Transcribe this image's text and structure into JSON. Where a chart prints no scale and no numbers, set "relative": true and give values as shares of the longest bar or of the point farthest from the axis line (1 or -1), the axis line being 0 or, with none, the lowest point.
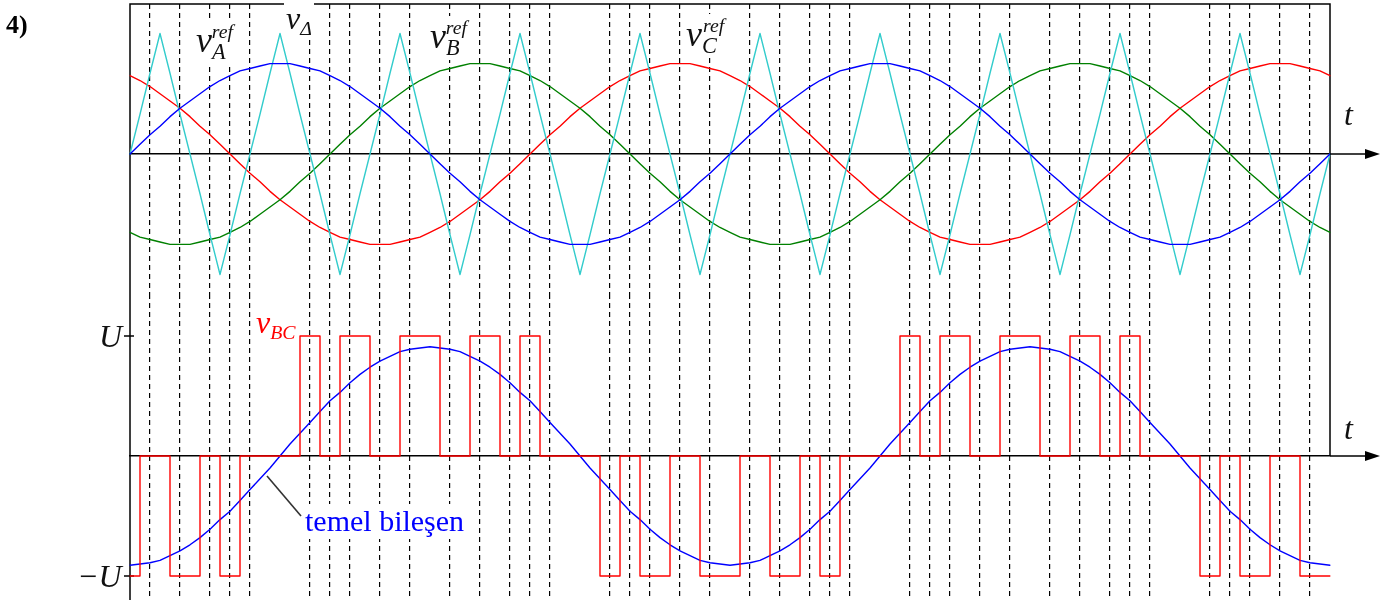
{
  "chart_data": [
    {
      "type": "line",
      "title": "4)",
      "xlabel": "t",
      "relative": true,
      "grid": "x",
      "categories": [
        null,
        null,
        null,
        null,
        null,
        null,
        null,
        null,
        null,
        null,
        null,
        null,
        null,
        null,
        null,
        null,
        null,
        null,
        null,
        null,
        null,
        null,
        null,
        null,
        null,
        null,
        null,
        null,
        null,
        null,
        null,
        null,
        null,
        null,
        null,
        null,
        null,
        null,
        null,
        null,
        null,
        null,
        null,
        null,
        null,
        null,
        null,
        null,
        null,
        null,
        null,
        null,
        null,
        null,
        null,
        null,
        null,
        null,
        null,
        null,
        null,
        null,
        null,
        null,
        null,
        null,
        null,
        null,
        null,
        null,
        null,
        null,
        null,
        null,
        null,
        null,
        null,
        null,
        null,
        null,
        null,
        null,
        null,
        null,
        null,
        null,
        null,
        null,
        null,
        null,
        null,
        null,
        null,
        null,
        null,
        null,
        null,
        null,
        null,
        null,
        null,
        null,
        null,
        null,
        null,
        null,
        null,
        null,
        null,
        null,
        null,
        null,
        null,
        null,
        null,
        null,
        null,
        null,
        null,
        null,
        null
      ],
      "series": [
        {
          "name": "v$_{A}$$^{ref}$",
          "color": "#0000ff",
          "values": [
            0,
            0.08,
            0.16,
            0.23,
            0.31,
            0.38,
            0.44,
            0.5,
            0.56,
            0.61,
            0.65,
            0.69,
            0.71,
            0.73,
            0.75,
            0.75,
            0.75,
            0.73,
            0.71,
            0.69,
            0.65,
            0.61,
            0.56,
            0.5,
            0.44,
            0.38,
            0.31,
            0.23,
            0.16,
            0.08,
            0,
            -0.08,
            -0.16,
            -0.23,
            -0.31,
            -0.38,
            -0.44,
            -0.5,
            -0.56,
            -0.61,
            -0.65,
            -0.69,
            -0.71,
            -0.73,
            -0.75,
            -0.75,
            -0.75,
            -0.73,
            -0.71,
            -0.69,
            -0.65,
            -0.61,
            -0.56,
            -0.5,
            -0.44,
            -0.38,
            -0.31,
            -0.23,
            -0.16,
            -0.08,
            0,
            0.08,
            0.16,
            0.23,
            0.31,
            0.38,
            0.44,
            0.5,
            0.56,
            0.61,
            0.65,
            0.69,
            0.71,
            0.73,
            0.75,
            0.75,
            0.75,
            0.73,
            0.71,
            0.69,
            0.65,
            0.61,
            0.56,
            0.5,
            0.44,
            0.38,
            0.31,
            0.23,
            0.16,
            0.08,
            0,
            -0.08,
            -0.16,
            -0.23,
            -0.31,
            -0.38,
            -0.44,
            -0.5,
            -0.56,
            -0.61,
            -0.65,
            -0.69,
            -0.71,
            -0.73,
            -0.75,
            -0.75,
            -0.75,
            -0.73,
            -0.71,
            -0.69,
            -0.65,
            -0.61,
            -0.56,
            -0.5,
            -0.44,
            -0.38,
            -0.31,
            -0.23,
            -0.16,
            -0.08,
            0
          ]
        },
        {
          "name": "v$_{Δ}$",
          "color": "#33cccc",
          "values": [
            0,
            0.33,
            0.67,
            1,
            0.67,
            0.33,
            0,
            -0.33,
            -0.67,
            -1,
            -0.67,
            -0.33,
            0,
            0.33,
            0.67,
            1,
            0.67,
            0.33,
            0,
            -0.33,
            -0.67,
            -1,
            -0.67,
            -0.33,
            0,
            0.33,
            0.67,
            1,
            0.67,
            0.33,
            0,
            -0.33,
            -0.67,
            -1,
            -0.67,
            -0.33,
            0,
            0.33,
            0.67,
            1,
            0.67,
            0.33,
            0,
            -0.33,
            -0.67,
            -1,
            -0.67,
            -0.33,
            0,
            0.33,
            0.67,
            1,
            0.67,
            0.33,
            0,
            -0.33,
            -0.67,
            -1,
            -0.67,
            -0.33,
            0,
            0.33,
            0.67,
            1,
            0.67,
            0.33,
            0,
            -0.33,
            -0.67,
            -1,
            -0.67,
            -0.33,
            0,
            0.33,
            0.67,
            1,
            0.67,
            0.33,
            0,
            -0.33,
            -0.67,
            -1,
            -0.67,
            -0.33,
            0,
            0.33,
            0.67,
            1,
            0.67,
            0.33,
            0,
            -0.33,
            -0.67,
            -1,
            -0.67,
            -0.33,
            0,
            0.33,
            0.67,
            1,
            0.67,
            0.33,
            0,
            -0.33,
            -0.67,
            -1,
            -0.67,
            -0.33,
            0,
            0.33,
            0.67,
            1,
            0.67,
            0.33,
            0,
            -0.33,
            -0.67,
            -1,
            -0.67,
            -0.33,
            0
          ]
        },
        {
          "name": "v$_{B}$$^{ref}$",
          "color": "#008000",
          "values": [
            -0.65,
            -0.69,
            -0.71,
            -0.73,
            -0.75,
            -0.75,
            -0.75,
            -0.73,
            -0.71,
            -0.69,
            -0.65,
            -0.61,
            -0.56,
            -0.5,
            -0.44,
            -0.38,
            -0.31,
            -0.23,
            -0.16,
            -0.08,
            0,
            0.08,
            0.16,
            0.23,
            0.31,
            0.38,
            0.44,
            0.5,
            0.56,
            0.61,
            0.65,
            0.69,
            0.71,
            0.73,
            0.75,
            0.75,
            0.75,
            0.73,
            0.71,
            0.69,
            0.65,
            0.61,
            0.56,
            0.5,
            0.44,
            0.38,
            0.31,
            0.23,
            0.16,
            0.08,
            0,
            -0.08,
            -0.16,
            -0.23,
            -0.31,
            -0.38,
            -0.44,
            -0.5,
            -0.56,
            -0.61,
            -0.65,
            -0.69,
            -0.71,
            -0.73,
            -0.75,
            -0.75,
            -0.75,
            -0.73,
            -0.71,
            -0.69,
            -0.65,
            -0.61,
            -0.56,
            -0.5,
            -0.44,
            -0.38,
            -0.31,
            -0.23,
            -0.16,
            -0.08,
            0,
            0.08,
            0.16,
            0.23,
            0.31,
            0.38,
            0.44,
            0.5,
            0.56,
            0.61,
            0.65,
            0.69,
            0.71,
            0.73,
            0.75,
            0.75,
            0.75,
            0.73,
            0.71,
            0.69,
            0.65,
            0.61,
            0.56,
            0.5,
            0.44,
            0.38,
            0.31,
            0.23,
            0.16,
            0.08,
            0,
            -0.08,
            -0.16,
            -0.23,
            -0.31,
            -0.38,
            -0.44,
            -0.5,
            -0.56,
            -0.61,
            -0.65
          ]
        },
        {
          "name": "v$_{C}$$^{ref}$",
          "color": "#ff0000",
          "values": [
            0.65,
            0.61,
            0.56,
            0.5,
            0.44,
            0.38,
            0.31,
            0.23,
            0.16,
            0.08,
            0,
            -0.08,
            -0.16,
            -0.23,
            -0.31,
            -0.38,
            -0.44,
            -0.5,
            -0.56,
            -0.61,
            -0.65,
            -0.69,
            -0.71,
            -0.73,
            -0.75,
            -0.75,
            -0.75,
            -0.73,
            -0.71,
            -0.69,
            -0.65,
            -0.61,
            -0.56,
            -0.5,
            -0.44,
            -0.38,
            -0.31,
            -0.23,
            -0.16,
            -0.08,
            0,
            0.08,
            0.16,
            0.23,
            0.31,
            0.38,
            0.44,
            0.5,
            0.56,
            0.61,
            0.65,
            0.69,
            0.71,
            0.73,
            0.75,
            0.75,
            0.75,
            0.73,
            0.71,
            0.69,
            0.65,
            0.61,
            0.56,
            0.5,
            0.44,
            0.38,
            0.31,
            0.23,
            0.16,
            0.08,
            0,
            -0.08,
            -0.16,
            -0.23,
            -0.31,
            -0.38,
            -0.44,
            -0.5,
            -0.56,
            -0.61,
            -0.65,
            -0.69,
            -0.71,
            -0.73,
            -0.75,
            -0.75,
            -0.75,
            -0.73,
            -0.71,
            -0.69,
            -0.65,
            -0.61,
            -0.56,
            -0.5,
            -0.44,
            -0.38,
            -0.31,
            -0.23,
            -0.16,
            -0.08,
            0,
            0.08,
            0.16,
            0.23,
            0.31,
            0.38,
            0.44,
            0.5,
            0.56,
            0.61,
            0.65,
            0.69,
            0.71,
            0.73,
            0.75,
            0.75,
            0.75,
            0.73,
            0.71,
            0.69,
            0.65
          ]
        }
      ]
    },
    {
      "type": "line",
      "xlabel": "t",
      "relative": true,
      "grid": "x",
      "annotations": [
        "U",
        "−U"
      ],
      "categories": [
        null,
        null,
        null,
        null,
        null,
        null,
        null,
        null,
        null,
        null,
        null,
        null,
        null,
        null,
        null,
        null,
        null,
        null,
        null,
        null,
        null,
        null,
        null,
        null,
        null,
        null,
        null,
        null,
        null,
        null,
        null,
        null,
        null,
        null,
        null,
        null,
        null,
        null,
        null,
        null,
        null,
        null,
        null,
        null,
        null,
        null,
        null,
        null,
        null,
        null,
        null,
        null,
        null,
        null,
        null,
        null,
        null,
        null,
        null,
        null,
        null,
        null,
        null,
        null,
        null,
        null,
        null,
        null,
        null,
        null,
        null,
        null,
        null,
        null,
        null,
        null,
        null,
        null,
        null,
        null,
        null,
        null,
        null,
        null,
        null,
        null,
        null,
        null,
        null,
        null,
        null,
        null,
        null,
        null,
        null,
        null,
        null,
        null,
        null,
        null,
        null,
        null,
        null,
        null,
        null,
        null,
        null,
        null,
        null,
        null,
        null,
        null,
        null,
        null,
        null,
        null,
        null,
        null,
        null,
        null,
        null
      ],
      "series": [
        {
          "name": "v$_{BC}$",
          "type": "step",
          "color": "#ff0000",
          "values": [
            -1,
            -1,
            0,
            0,
            0,
            -1,
            -1,
            -1,
            0,
            0,
            -1,
            -1,
            0,
            0,
            0,
            0,
            0,
            0,
            1,
            1,
            0,
            0,
            1,
            1,
            1,
            0,
            0,
            0,
            1,
            1,
            1,
            1,
            0,
            0,
            0,
            1,
            1,
            1,
            0,
            0,
            1,
            1,
            0,
            0,
            0,
            0,
            0,
            0,
            -1,
            -1,
            0,
            0,
            -1,
            -1,
            -1,
            0,
            0,
            0,
            -1,
            -1,
            -1,
            -1,
            0,
            0,
            0,
            -1,
            -1,
            -1,
            0,
            0,
            -1,
            -1,
            0,
            0,
            0,
            0,
            0,
            0,
            1,
            1,
            0,
            0,
            1,
            1,
            1,
            0,
            0,
            0,
            1,
            1,
            1,
            1,
            0,
            0,
            0,
            1,
            1,
            1,
            0,
            0,
            1,
            1,
            0,
            0,
            0,
            0,
            0,
            0,
            -1,
            -1,
            0,
            0,
            -1,
            -1,
            -1,
            0,
            0,
            0,
            -1,
            -1,
            -1
          ]
        },
        {
          "name": "temel bileşen",
          "color": "#0000ff",
          "values": [
            -0.91,
            -0.9,
            -0.89,
            -0.87,
            -0.83,
            -0.79,
            -0.74,
            -0.68,
            -0.61,
            -0.53,
            -0.46,
            -0.37,
            -0.28,
            -0.19,
            -0.1,
            0,
            0.1,
            0.19,
            0.28,
            0.37,
            0.46,
            0.53,
            0.61,
            0.68,
            0.74,
            0.79,
            0.83,
            0.87,
            0.89,
            0.9,
            0.91,
            0.9,
            0.89,
            0.87,
            0.83,
            0.79,
            0.74,
            0.68,
            0.61,
            0.53,
            0.46,
            0.37,
            0.28,
            0.19,
            0.1,
            0,
            -0.1,
            -0.19,
            -0.28,
            -0.37,
            -0.46,
            -0.53,
            -0.61,
            -0.68,
            -0.74,
            -0.79,
            -0.83,
            -0.87,
            -0.89,
            -0.9,
            -0.91,
            -0.9,
            -0.89,
            -0.87,
            -0.83,
            -0.79,
            -0.74,
            -0.68,
            -0.61,
            -0.53,
            -0.46,
            -0.37,
            -0.28,
            -0.19,
            -0.1,
            0,
            0.1,
            0.19,
            0.28,
            0.37,
            0.46,
            0.53,
            0.61,
            0.68,
            0.74,
            0.79,
            0.83,
            0.87,
            0.89,
            0.9,
            0.91,
            0.9,
            0.89,
            0.87,
            0.83,
            0.79,
            0.74,
            0.68,
            0.61,
            0.53,
            0.46,
            0.37,
            0.28,
            0.19,
            0.1,
            0,
            -0.1,
            -0.19,
            -0.28,
            -0.37,
            -0.46,
            -0.53,
            -0.61,
            -0.68,
            -0.74,
            -0.79,
            -0.83,
            -0.87,
            -0.89,
            -0.9,
            -0.91
          ]
        }
      ]
    }
  ]
}
